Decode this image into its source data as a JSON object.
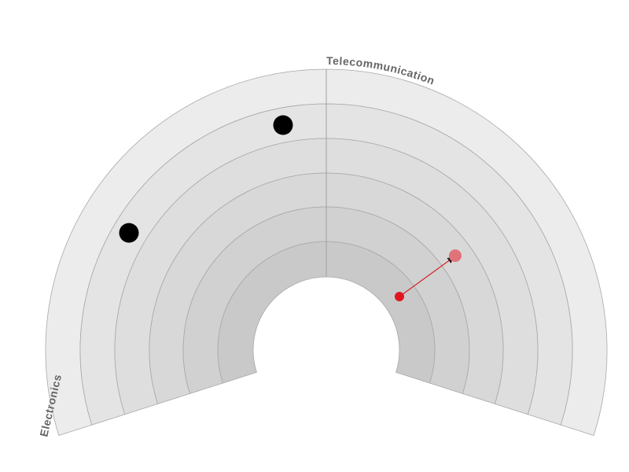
{
  "sectors": [
    {
      "label": "Electronics"
    },
    {
      "label": "Telecommunication"
    }
  ]
}
